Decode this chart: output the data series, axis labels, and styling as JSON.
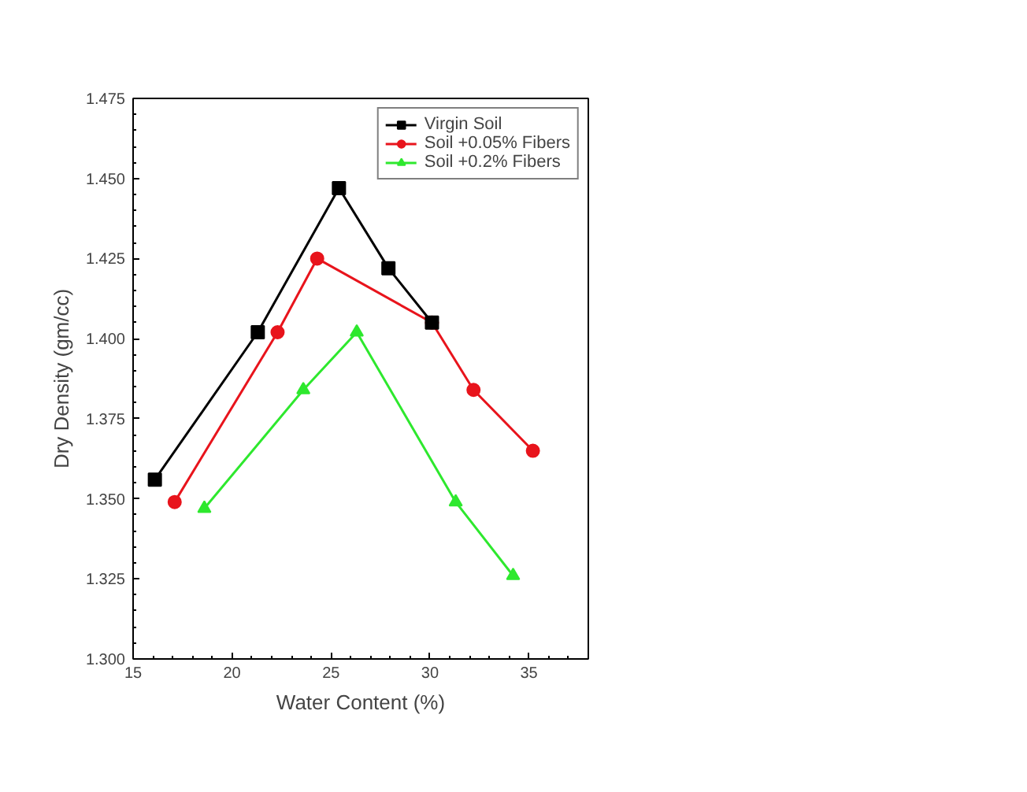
{
  "chart_data": {
    "type": "line",
    "xlabel": "Water Content (%)",
    "ylabel": "Dry Density (gm/cc)",
    "xlim": [
      15,
      38
    ],
    "xticks": [
      15,
      20,
      25,
      30,
      35
    ],
    "ylim": [
      1.3,
      1.475
    ],
    "yticks": [
      {
        "value": 1.3,
        "label": "1.300"
      },
      {
        "value": 1.325,
        "label": "1.325"
      },
      {
        "value": 1.35,
        "label": "1.350"
      },
      {
        "value": 1.375,
        "label": "1.375"
      },
      {
        "value": 1.4,
        "label": "1.400"
      },
      {
        "value": 1.425,
        "label": "1.425"
      },
      {
        "value": 1.45,
        "label": "1.450"
      },
      {
        "value": 1.475,
        "label": "1.475"
      }
    ],
    "legend": "top right",
    "grid": false,
    "series": [
      {
        "name": "Virgin Soil",
        "color": "#000000",
        "marker": "square",
        "x": [
          16.1,
          21.3,
          25.4,
          27.9,
          30.1
        ],
        "values": [
          1.356,
          1.402,
          1.447,
          1.422,
          1.405
        ]
      },
      {
        "name": "Soil +0.05% Fibers",
        "color": "#e8141c",
        "marker": "circle",
        "x": [
          17.1,
          22.3,
          24.3,
          30.1,
          32.2,
          35.2
        ],
        "values": [
          1.349,
          1.402,
          1.425,
          1.405,
          1.384,
          1.365
        ]
      },
      {
        "name": "Soil +0.2% Fibers",
        "color": "#2ee82e",
        "marker": "triangle",
        "x": [
          18.6,
          23.6,
          26.3,
          31.3,
          34.2
        ],
        "values": [
          1.347,
          1.384,
          1.402,
          1.349,
          1.326
        ]
      }
    ]
  }
}
